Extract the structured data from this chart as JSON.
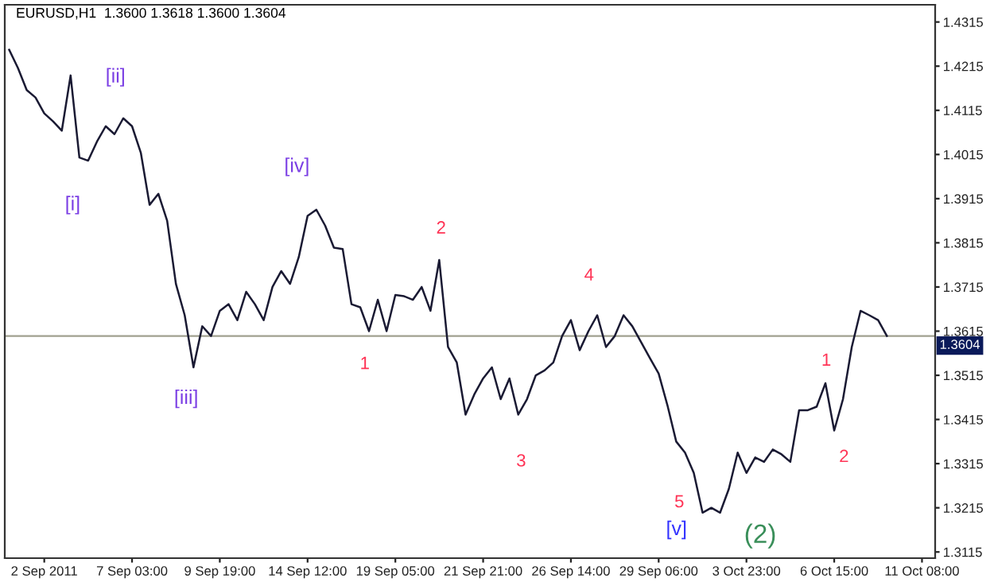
{
  "chart_data": {
    "type": "line",
    "title": "EURUSD,H1  1.3600 1.3618 1.3600 1.3604",
    "categories": [
      null,
      null,
      null,
      null,
      "2 Sep 2011",
      null,
      null,
      null,
      null,
      null,
      null,
      null,
      null,
      null,
      "7 Sep 03:00",
      null,
      null,
      null,
      null,
      null,
      null,
      null,
      null,
      null,
      "9 Sep 19:00",
      null,
      null,
      null,
      null,
      null,
      null,
      null,
      null,
      null,
      "14 Sep 12:00",
      null,
      null,
      null,
      null,
      null,
      null,
      null,
      null,
      null,
      "19 Sep 05:00",
      null,
      null,
      null,
      null,
      null,
      null,
      null,
      null,
      null,
      "21 Sep 21:00",
      null,
      null,
      null,
      null,
      null,
      null,
      null,
      null,
      null,
      "26 Sep 14:00",
      null,
      null,
      null,
      null,
      null,
      null,
      null,
      null,
      null,
      "29 Sep 06:00",
      null,
      null,
      null,
      null,
      null,
      null,
      null,
      null,
      null,
      "3 Oct 23:00",
      null,
      null,
      null,
      null,
      null,
      null,
      null,
      null,
      null,
      "6 Oct 15:00",
      null,
      null,
      null,
      null,
      null,
      null,
      null,
      null,
      null,
      "11 Oct 08:00",
      null
    ],
    "series": [
      {
        "color": "#1a1a33",
        "values": [
          1.4252,
          1.4211,
          1.4161,
          1.4144,
          1.4108,
          1.409,
          1.4069,
          1.4194,
          1.4008,
          1.4001,
          1.4044,
          1.4079,
          1.4061,
          1.4097,
          1.4079,
          1.4019,
          1.3901,
          1.3926,
          1.3865,
          1.3722,
          1.3651,
          1.3533,
          1.3626,
          1.3604,
          1.3661,
          1.3676,
          1.364,
          1.3704,
          1.3676,
          1.364,
          1.3715,
          1.3751,
          1.3722,
          1.3783,
          1.3876,
          1.389,
          1.3854,
          1.3804,
          1.3801,
          1.3676,
          1.3669,
          1.3615,
          1.3686,
          1.3615,
          1.3697,
          1.3694,
          1.3686,
          1.3715,
          1.3661,
          1.3776,
          1.3579,
          1.3544,
          1.3426,
          1.3472,
          1.3508,
          1.3533,
          1.3461,
          1.3508,
          1.3426,
          1.3461,
          1.3515,
          1.3526,
          1.3544,
          1.3604,
          1.364,
          1.3572,
          1.3615,
          1.3651,
          1.3579,
          1.3604,
          1.3651,
          1.3626,
          1.359,
          1.3554,
          1.3519,
          1.3447,
          1.3365,
          1.334,
          1.3294,
          1.3204,
          1.3215,
          1.3204,
          1.3258,
          1.334,
          1.3294,
          1.3329,
          1.3319,
          1.3347,
          1.3336,
          1.3319,
          1.3436,
          1.3436,
          1.3444,
          1.3497,
          1.339,
          1.3461,
          1.3579,
          1.3661,
          1.3651,
          1.364,
          1.3604,
          null,
          null,
          null,
          null,
          null
        ]
      }
    ],
    "ylim": [
      1.3101,
      1.4354
    ],
    "yticks": [
      1.3115,
      1.3215,
      1.3315,
      1.3415,
      1.3515,
      1.3615,
      1.3715,
      1.3815,
      1.3915,
      1.4015,
      1.4115,
      1.4215,
      1.4315
    ],
    "ref_lines": [
      {
        "axis": "y",
        "value": 1.3604,
        "label": "1.3604",
        "color": "#a0a090"
      }
    ],
    "annotations": [
      "[i]",
      "[ii]",
      "[iii]",
      "[iv]",
      "1",
      "2",
      "3",
      "4",
      "5",
      "[v]",
      "(2)",
      "1",
      "2"
    ],
    "grid": false,
    "line_style": "solid",
    "marker": "none"
  }
}
